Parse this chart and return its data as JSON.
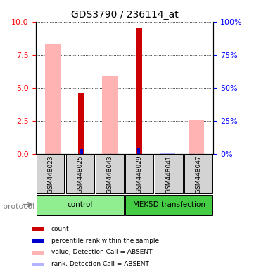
{
  "title": "GDS3790 / 236114_at",
  "samples": [
    "GSM448023",
    "GSM448025",
    "GSM448043",
    "GSM448029",
    "GSM448041",
    "GSM448047"
  ],
  "value_absent": [
    8.3,
    null,
    5.9,
    null,
    null,
    2.6
  ],
  "rank_absent": [
    null,
    null,
    null,
    null,
    0.7,
    null
  ],
  "count_present": [
    null,
    4.6,
    null,
    9.5,
    null,
    null
  ],
  "rank_present": [
    null,
    3.4,
    null,
    4.6,
    null,
    null
  ],
  "count_color": "#cc0000",
  "rank_color": "#0000cc",
  "value_absent_color": "#ffb3b3",
  "rank_absent_color": "#b3b3ff",
  "ylim_left": [
    0,
    10
  ],
  "ylim_right": [
    0,
    100
  ],
  "yticks_left": [
    0,
    2.5,
    5.0,
    7.5,
    10
  ],
  "yticks_right": [
    0,
    25,
    50,
    75,
    100
  ],
  "background_color": "#ffffff",
  "protocol_label": "protocol",
  "group_bounds": [
    {
      "start": 0,
      "end": 3,
      "label": "control",
      "color": "#90ee90"
    },
    {
      "start": 3,
      "end": 6,
      "label": "MEK5D transfection",
      "color": "#44cc44"
    }
  ],
  "legend_items": [
    {
      "label": "count",
      "color": "#cc0000"
    },
    {
      "label": "percentile rank within the sample",
      "color": "#0000cc"
    },
    {
      "label": "value, Detection Call = ABSENT",
      "color": "#ffb3b3"
    },
    {
      "label": "rank, Detection Call = ABSENT",
      "color": "#b3b3ff"
    }
  ]
}
